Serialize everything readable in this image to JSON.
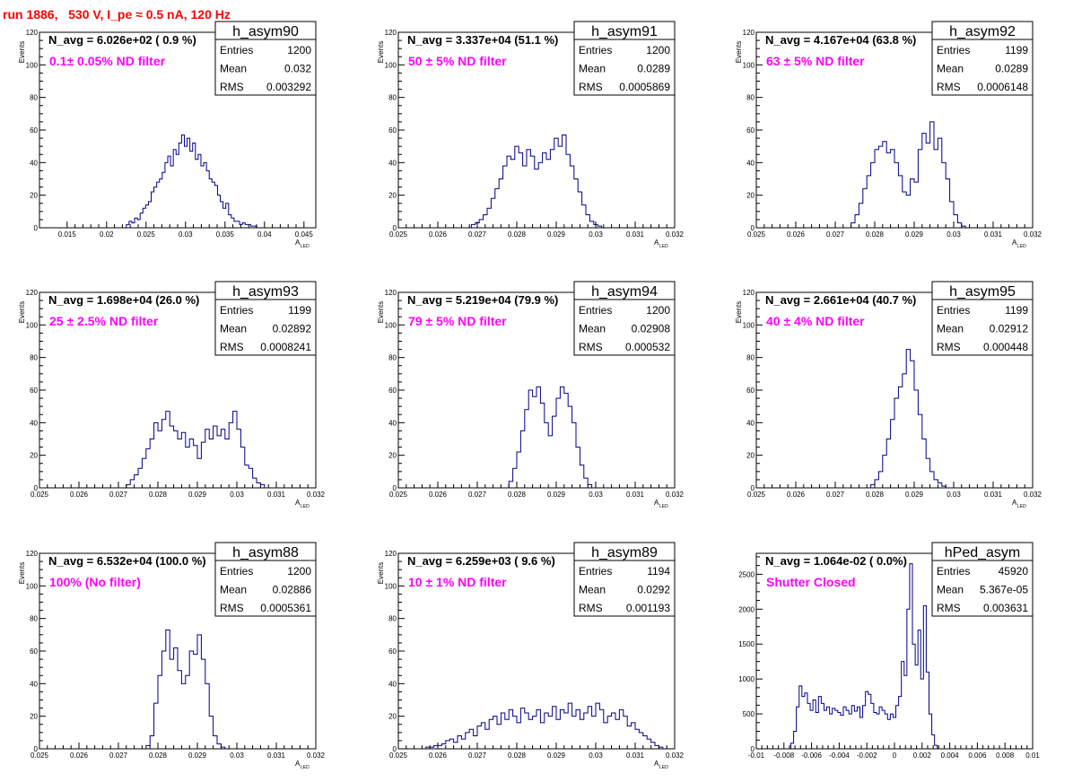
{
  "run_title": "run 1886,   530 V, I_pe ≈ 0.5 nA, 120 Hz",
  "colors": {
    "title": "#ff0000",
    "annotation": "#ff00ff",
    "histogram": "#00008b",
    "frame": "#000000"
  },
  "chart_data": [
    {
      "type": "bar",
      "name": "h_asym90",
      "navg_text": "N_avg = 6.026e+02 ( 0.9 %)",
      "filter_text": "0.1± 0.05% ND filter",
      "stats": {
        "entries_label": "Entries",
        "entries": "1200",
        "mean_label": "Mean",
        "mean": "0.032",
        "rms_label": "RMS",
        "rms": "0.003292"
      },
      "ylabel": "Events",
      "xlabel": "A",
      "xlabel_sub": "LED",
      "xlim": [
        0.0115,
        0.0465
      ],
      "ylim": [
        0,
        120
      ],
      "xticks": [
        0.015,
        0.02,
        0.025,
        0.03,
        0.035,
        0.04,
        0.045
      ],
      "xtick_labels": [
        "0.015",
        "0.02",
        "0.025",
        "0.03",
        "0.035",
        "0.04",
        "0.045"
      ],
      "yticks": [
        0,
        20,
        40,
        60,
        80,
        100,
        120
      ],
      "ytick_labels": [
        "0",
        "20",
        "40",
        "60",
        "80",
        "100",
        "120"
      ],
      "bin_start": 0.0225,
      "bin_width": 0.00035,
      "values": [
        2,
        4,
        3,
        6,
        5,
        9,
        12,
        14,
        16,
        22,
        25,
        28,
        30,
        34,
        40,
        44,
        38,
        48,
        45,
        52,
        57,
        50,
        55,
        47,
        52,
        42,
        45,
        38,
        40,
        35,
        30,
        28,
        26,
        20,
        16,
        12,
        15,
        8,
        6,
        4,
        4,
        2,
        3,
        2,
        2,
        1,
        1
      ]
    },
    {
      "type": "bar",
      "name": "h_asym91",
      "navg_text": "N_avg = 3.337e+04 (51.1 %)",
      "filter_text": "50 ± 5% ND filter",
      "stats": {
        "entries_label": "Entries",
        "entries": "1200",
        "mean_label": "Mean",
        "mean": "0.0289",
        "rms_label": "RMS",
        "rms": "0.0005869"
      },
      "ylabel": "Events",
      "xlabel": "A",
      "xlabel_sub": "LED",
      "xlim": [
        0.025,
        0.032
      ],
      "ylim": [
        0,
        120
      ],
      "xticks": [
        0.025,
        0.026,
        0.027,
        0.028,
        0.029,
        0.03,
        0.031,
        0.032
      ],
      "xtick_labels": [
        "0.025",
        "0.026",
        "0.027",
        "0.028",
        "0.029",
        "0.03",
        "0.031",
        "0.032"
      ],
      "yticks": [
        0,
        20,
        40,
        60,
        80,
        100,
        120
      ],
      "ytick_labels": [
        "0",
        "20",
        "40",
        "60",
        "80",
        "100",
        "120"
      ],
      "bin_start": 0.02685,
      "bin_width": 0.0001,
      "values": [
        2,
        3,
        5,
        8,
        12,
        18,
        24,
        30,
        38,
        44,
        42,
        50,
        46,
        38,
        48,
        44,
        36,
        40,
        46,
        42,
        48,
        55,
        50,
        57,
        45,
        38,
        30,
        22,
        14,
        8,
        4,
        2,
        1
      ]
    },
    {
      "type": "bar",
      "name": "h_asym92",
      "navg_text": "N_avg = 4.167e+04 (63.8 %)",
      "filter_text": "63 ± 5% ND filter",
      "stats": {
        "entries_label": "Entries",
        "entries": "1199",
        "mean_label": "Mean",
        "mean": "0.0289",
        "rms_label": "RMS",
        "rms": "0.0006148"
      },
      "ylabel": "Events",
      "xlabel": "A",
      "xlabel_sub": "LED",
      "xlim": [
        0.025,
        0.032
      ],
      "ylim": [
        0,
        120
      ],
      "xticks": [
        0.025,
        0.026,
        0.027,
        0.028,
        0.029,
        0.03,
        0.031,
        0.032
      ],
      "xtick_labels": [
        "0.025",
        "0.026",
        "0.027",
        "0.028",
        "0.029",
        "0.03",
        "0.031",
        "0.032"
      ],
      "yticks": [
        0,
        20,
        40,
        60,
        80,
        100,
        120
      ],
      "ytick_labels": [
        "0",
        "20",
        "40",
        "60",
        "80",
        "100",
        "120"
      ],
      "bin_start": 0.0274,
      "bin_width": 0.0001,
      "values": [
        3,
        8,
        15,
        24,
        32,
        40,
        48,
        50,
        53,
        46,
        48,
        40,
        32,
        22,
        20,
        30,
        28,
        48,
        58,
        52,
        65,
        48,
        55,
        40,
        30,
        16,
        8,
        3,
        1
      ]
    },
    {
      "type": "bar",
      "name": "h_asym93",
      "navg_text": "N_avg = 1.698e+04 (26.0 %)",
      "filter_text": "25 ± 2.5% ND filter",
      "stats": {
        "entries_label": "Entries",
        "entries": "1199",
        "mean_label": "Mean",
        "mean": "0.02892",
        "rms_label": "RMS",
        "rms": "0.0008241"
      },
      "ylabel": "Events",
      "xlabel": "A",
      "xlabel_sub": "LED",
      "xlim": [
        0.025,
        0.032
      ],
      "ylim": [
        0,
        120
      ],
      "xticks": [
        0.025,
        0.026,
        0.027,
        0.028,
        0.029,
        0.03,
        0.031,
        0.032
      ],
      "xtick_labels": [
        "0.025",
        "0.026",
        "0.027",
        "0.028",
        "0.029",
        "0.03",
        "0.031",
        "0.032"
      ],
      "yticks": [
        0,
        20,
        40,
        60,
        80,
        100,
        120
      ],
      "ytick_labels": [
        "0",
        "20",
        "40",
        "60",
        "80",
        "100",
        "120"
      ],
      "bin_start": 0.0272,
      "bin_width": 0.0001,
      "values": [
        2,
        5,
        8,
        12,
        18,
        24,
        30,
        40,
        35,
        42,
        47,
        38,
        35,
        30,
        34,
        25,
        30,
        26,
        18,
        28,
        36,
        30,
        38,
        32,
        36,
        30,
        40,
        47,
        36,
        25,
        14,
        12,
        6,
        3,
        2
      ]
    },
    {
      "type": "bar",
      "name": "h_asym94",
      "navg_text": "N_avg = 5.219e+04 (79.9 %)",
      "filter_text": "79 ± 5% ND filter",
      "stats": {
        "entries_label": "Entries",
        "entries": "1200",
        "mean_label": "Mean",
        "mean": "0.02908",
        "rms_label": "RMS",
        "rms": "0.000532"
      },
      "ylabel": "Events",
      "xlabel": "A",
      "xlabel_sub": "LED",
      "xlim": [
        0.025,
        0.032
      ],
      "ylim": [
        0,
        120
      ],
      "xticks": [
        0.025,
        0.026,
        0.027,
        0.028,
        0.029,
        0.03,
        0.031,
        0.032
      ],
      "xtick_labels": [
        "0.025",
        "0.026",
        "0.027",
        "0.028",
        "0.029",
        "0.03",
        "0.031",
        "0.032"
      ],
      "yticks": [
        0,
        20,
        40,
        60,
        80,
        100,
        120
      ],
      "ytick_labels": [
        "0",
        "20",
        "40",
        "60",
        "80",
        "100",
        "120"
      ],
      "bin_start": 0.0278,
      "bin_width": 0.0001,
      "values": [
        4,
        12,
        22,
        35,
        48,
        60,
        56,
        62,
        52,
        40,
        32,
        44,
        55,
        62,
        58,
        50,
        40,
        25,
        14,
        6,
        2
      ]
    },
    {
      "type": "bar",
      "name": "h_asym95",
      "navg_text": "N_avg = 2.661e+04 (40.7 %)",
      "filter_text": "40 ± 4% ND filter",
      "stats": {
        "entries_label": "Entries",
        "entries": "1199",
        "mean_label": "Mean",
        "mean": "0.02912",
        "rms_label": "RMS",
        "rms": "0.000448"
      },
      "ylabel": "Events",
      "xlabel": "A",
      "xlabel_sub": "LED",
      "xlim": [
        0.025,
        0.032
      ],
      "ylim": [
        0,
        120
      ],
      "xticks": [
        0.025,
        0.026,
        0.027,
        0.028,
        0.029,
        0.03,
        0.031,
        0.032
      ],
      "xtick_labels": [
        "0.025",
        "0.026",
        "0.027",
        "0.028",
        "0.029",
        "0.03",
        "0.031",
        "0.032"
      ],
      "yticks": [
        0,
        20,
        40,
        60,
        80,
        100,
        120
      ],
      "ytick_labels": [
        "0",
        "20",
        "40",
        "60",
        "80",
        "100",
        "120"
      ],
      "bin_start": 0.0279,
      "bin_width": 0.0001,
      "values": [
        2,
        5,
        10,
        20,
        30,
        42,
        55,
        62,
        70,
        85,
        78,
        60,
        45,
        30,
        18,
        10,
        5,
        3,
        1
      ]
    },
    {
      "type": "bar",
      "name": "h_asym88",
      "navg_text": "N_avg = 6.532e+04 (100.0 %)",
      "filter_text": "100% (No filter)",
      "stats": {
        "entries_label": "Entries",
        "entries": "1200",
        "mean_label": "Mean",
        "mean": "0.02886",
        "rms_label": "RMS",
        "rms": "0.0005361"
      },
      "ylabel": "Events",
      "xlabel": "A",
      "xlabel_sub": "LED",
      "xlim": [
        0.025,
        0.032
      ],
      "ylim": [
        0,
        120
      ],
      "xticks": [
        0.025,
        0.026,
        0.027,
        0.028,
        0.029,
        0.03,
        0.031,
        0.032
      ],
      "xtick_labels": [
        "0.025",
        "0.026",
        "0.027",
        "0.028",
        "0.029",
        "0.03",
        "0.031",
        "0.032"
      ],
      "yticks": [
        0,
        20,
        40,
        60,
        80,
        100,
        120
      ],
      "ytick_labels": [
        "0",
        "20",
        "40",
        "60",
        "80",
        "100",
        "120"
      ],
      "bin_start": 0.0277,
      "bin_width": 0.0001,
      "values": [
        2,
        8,
        28,
        45,
        60,
        73,
        55,
        62,
        48,
        40,
        45,
        60,
        58,
        70,
        55,
        40,
        20,
        8,
        3,
        1
      ]
    },
    {
      "type": "bar",
      "name": "h_asym89",
      "navg_text": "N_avg = 6.259e+03 ( 9.6 %)",
      "filter_text": "10 ± 1% ND filter",
      "stats": {
        "entries_label": "Entries",
        "entries": "1194",
        "mean_label": "Mean",
        "mean": "0.0292",
        "rms_label": "RMS",
        "rms": "0.001193"
      },
      "ylabel": "Events",
      "xlabel": "A",
      "xlabel_sub": "LED",
      "xlim": [
        0.025,
        0.032
      ],
      "ylim": [
        0,
        120
      ],
      "xticks": [
        0.025,
        0.026,
        0.027,
        0.028,
        0.029,
        0.03,
        0.031,
        0.032
      ],
      "xtick_labels": [
        "0.025",
        "0.026",
        "0.027",
        "0.028",
        "0.029",
        "0.03",
        "0.031",
        "0.032"
      ],
      "yticks": [
        0,
        20,
        40,
        60,
        80,
        100,
        120
      ],
      "ytick_labels": [
        "0",
        "20",
        "40",
        "60",
        "80",
        "100",
        "120"
      ],
      "bin_start": 0.0257,
      "bin_width": 0.0001,
      "values": [
        1,
        1,
        2,
        2,
        3,
        5,
        6,
        4,
        8,
        6,
        10,
        12,
        8,
        14,
        16,
        12,
        18,
        20,
        15,
        22,
        18,
        24,
        20,
        16,
        25,
        22,
        18,
        20,
        24,
        16,
        22,
        20,
        26,
        18,
        24,
        22,
        28,
        20,
        24,
        18,
        22,
        26,
        20,
        28,
        24,
        16,
        20,
        22,
        18,
        24,
        20,
        14,
        16,
        12,
        10,
        8,
        6,
        4,
        2,
        1
      ]
    },
    {
      "type": "bar",
      "name": "hPed_asym",
      "navg_text": "N_avg = 1.064e-02 ( 0.0%)",
      "filter_text": "Shutter Closed",
      "stats": {
        "entries_label": "Entries",
        "entries": "45920",
        "mean_label": "Mean",
        "mean": "5.367e-05",
        "rms_label": "RMS",
        "rms": "0.003631"
      },
      "ylabel": "",
      "xlabel": "",
      "xlabel_sub": "",
      "xlim": [
        -0.01,
        0.01
      ],
      "ylim": [
        0,
        2800
      ],
      "xticks": [
        -0.01,
        -0.008,
        -0.006,
        -0.004,
        -0.002,
        0,
        0.002,
        0.004,
        0.006,
        0.008,
        0.01
      ],
      "xtick_labels": [
        "-0.01",
        "-0.008",
        "-0.006",
        "-0.004",
        "-0.002",
        "0",
        "0.002",
        "0.004",
        "0.006",
        "0.008",
        "0.01"
      ],
      "yticks": [
        0,
        500,
        1000,
        1500,
        2000,
        2500
      ],
      "ytick_labels": [
        "0",
        "500",
        "1000",
        "1500",
        "2000",
        "2500"
      ],
      "bin_start": -0.0075,
      "bin_width": 0.0002,
      "values": [
        80,
        250,
        600,
        900,
        750,
        800,
        650,
        550,
        700,
        520,
        750,
        650,
        550,
        600,
        500,
        580,
        550,
        520,
        480,
        600,
        550,
        500,
        620,
        540,
        600,
        450,
        620,
        820,
        780,
        650,
        520,
        500,
        600,
        550,
        500,
        420,
        500,
        450,
        620,
        750,
        1250,
        1050,
        2000,
        2650,
        1500,
        1200,
        1700,
        1000,
        2050,
        1100,
        500,
        200,
        50
      ]
    }
  ]
}
